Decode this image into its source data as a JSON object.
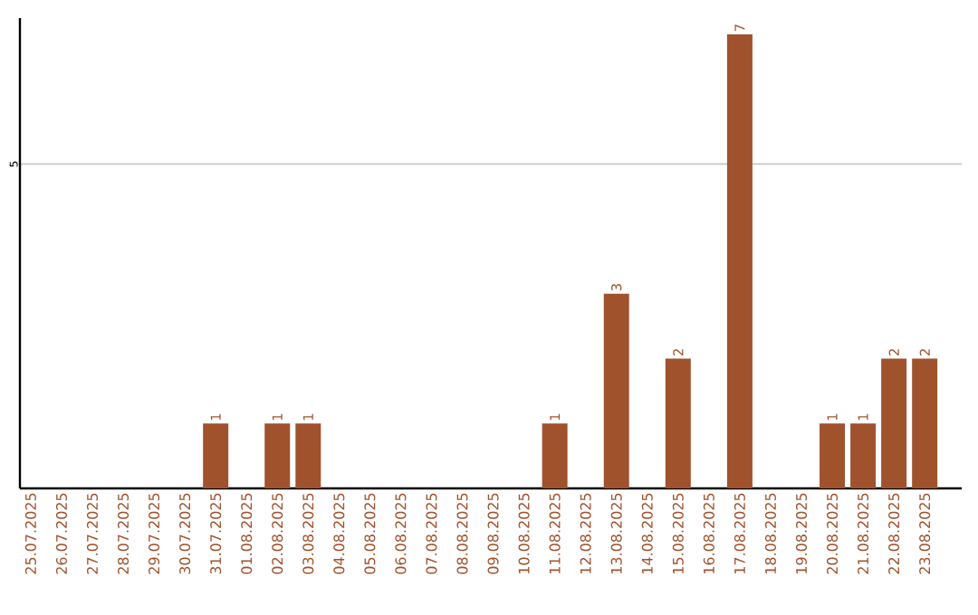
{
  "chart_data": {
    "type": "bar",
    "categories": [
      "25.07.2025",
      "26.07.2025",
      "27.07.2025",
      "28.07.2025",
      "29.07.2025",
      "30.07.2025",
      "31.07.2025",
      "01.08.2025",
      "02.08.2025",
      "03.08.2025",
      "04.08.2025",
      "05.08.2025",
      "06.08.2025",
      "07.08.2025",
      "08.08.2025",
      "09.08.2025",
      "10.08.2025",
      "11.08.2025",
      "12.08.2025",
      "13.08.2025",
      "14.08.2025",
      "15.08.2025",
      "16.08.2025",
      "17.08.2025",
      "18.08.2025",
      "19.08.2025",
      "20.08.2025",
      "21.08.2025",
      "22.08.2025",
      "23.08.2025"
    ],
    "values": [
      0,
      0,
      0,
      0,
      0,
      0,
      1,
      0,
      1,
      1,
      0,
      0,
      0,
      0,
      0,
      0,
      0,
      1,
      0,
      3,
      0,
      2,
      0,
      7,
      0,
      0,
      1,
      1,
      2,
      2
    ],
    "value_labels": [
      null,
      null,
      null,
      null,
      null,
      null,
      "1",
      null,
      "1",
      "1",
      null,
      null,
      null,
      null,
      null,
      null,
      null,
      "1",
      null,
      "3",
      null,
      "2",
      null,
      "7",
      null,
      null,
      "1",
      "1",
      "2",
      "2"
    ],
    "color": "#a0522d",
    "ylim": [
      0,
      7.25
    ],
    "yticks": [
      5
    ],
    "grid": "y"
  }
}
